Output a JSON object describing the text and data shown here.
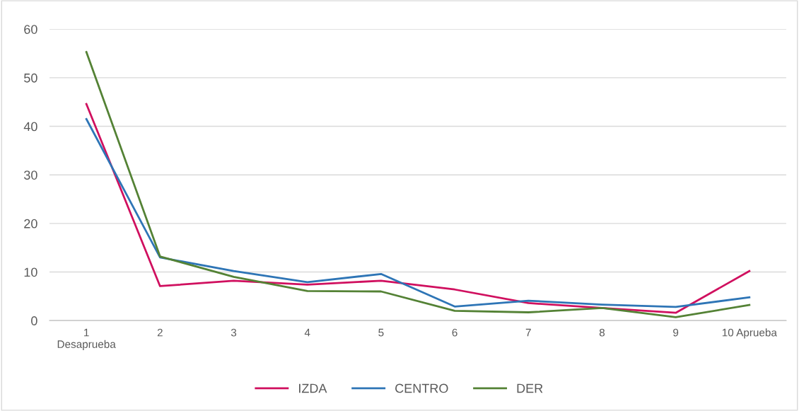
{
  "chart_data": {
    "type": "line",
    "categories": [
      "1\nDesaprueba",
      "2",
      "3",
      "4",
      "5",
      "6",
      "7",
      "8",
      "9",
      "10 Aprueba"
    ],
    "series": [
      {
        "name": "IZDA",
        "color": "#d0105f",
        "values": [
          44.6,
          7.1,
          8.2,
          7.4,
          8.2,
          6.4,
          3.6,
          2.6,
          1.6,
          10.2
        ]
      },
      {
        "name": "CENTRO",
        "color": "#2e75b6",
        "values": [
          41.5,
          13.0,
          10.2,
          7.9,
          9.6,
          2.9,
          4.1,
          3.3,
          2.8,
          4.8
        ]
      },
      {
        "name": "DER",
        "color": "#548235",
        "values": [
          55.3,
          13.2,
          9.0,
          6.1,
          6.0,
          2.0,
          1.7,
          2.6,
          0.7,
          3.2
        ]
      }
    ],
    "ylim": [
      0,
      60
    ],
    "yticks": [
      0,
      10,
      20,
      30,
      40,
      50,
      60
    ],
    "grid": "y",
    "legend": "bottom",
    "marker": "none",
    "line_style": "solid"
  }
}
